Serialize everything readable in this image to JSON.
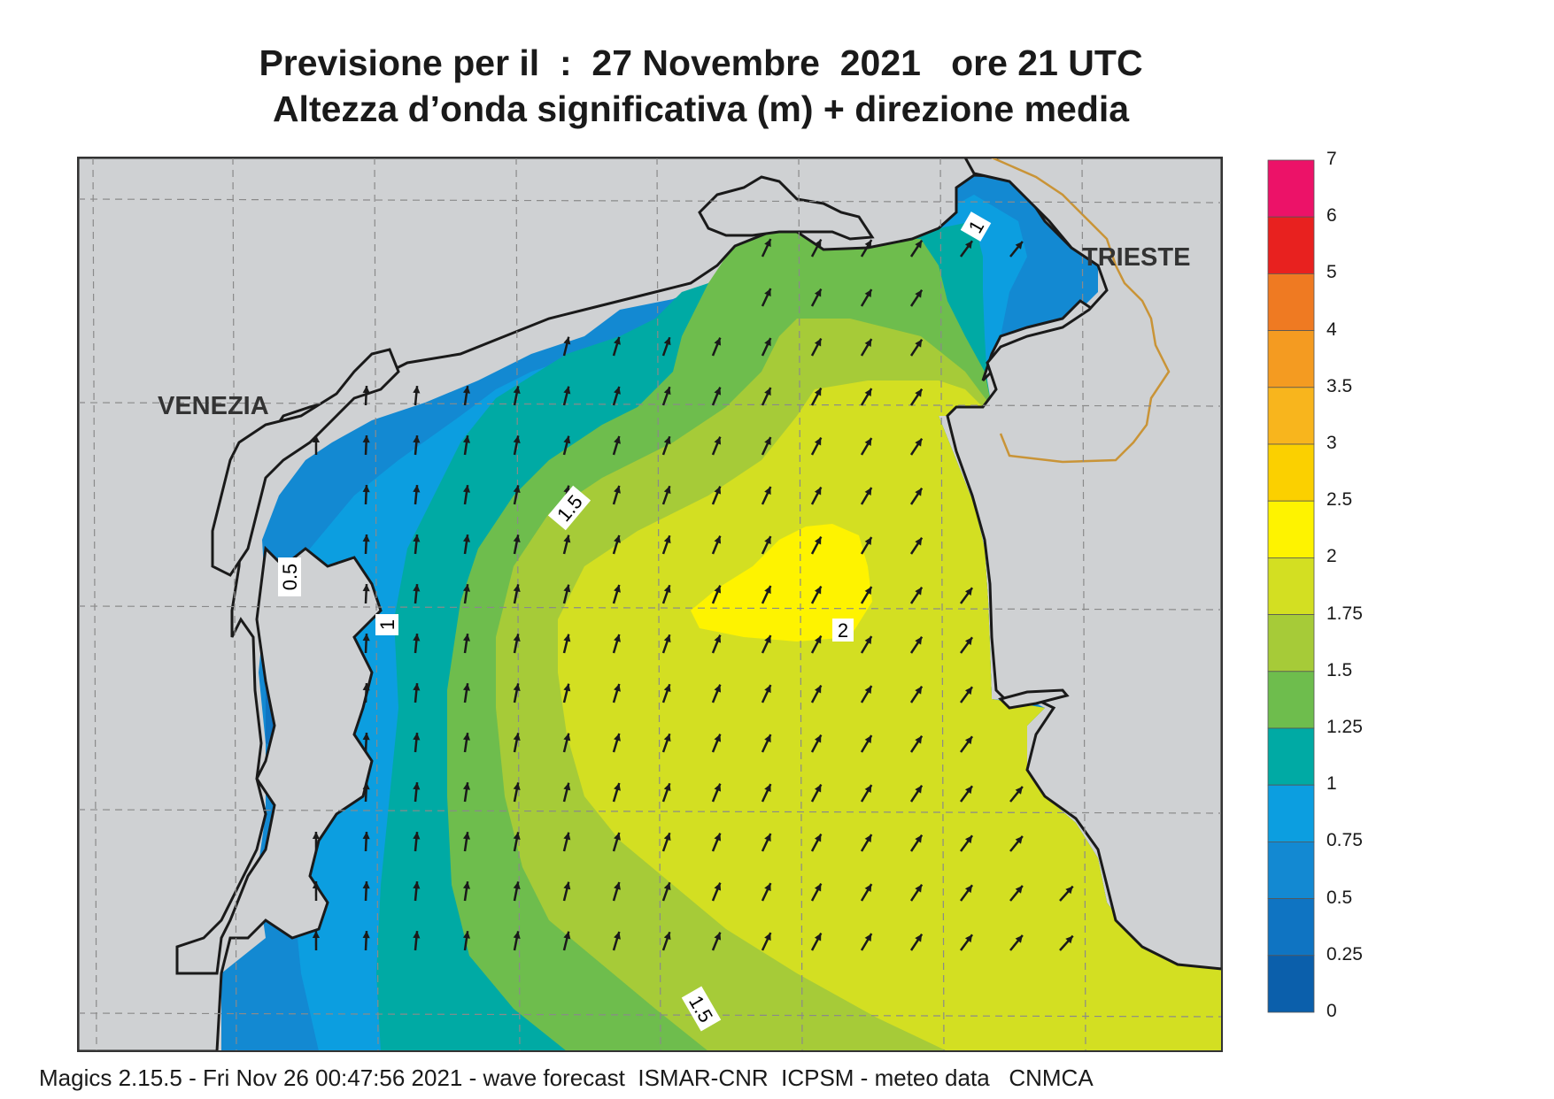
{
  "title": {
    "line1": "Previsione per il  :  27 Novembre  2021   ore 21 UTC",
    "line2": "Altezza d’onda significativa (m) + direzione media"
  },
  "places": {
    "venezia": "VENEZIA",
    "trieste": "TRIESTE"
  },
  "contour_labels": [
    "0.5",
    "1",
    "1.5",
    "2",
    "1.5",
    "1"
  ],
  "legend": {
    "values": [
      "7",
      "6",
      "5",
      "4",
      "3.5",
      "3",
      "2.5",
      "2",
      "1.75",
      "1.5",
      "1.25",
      "1",
      "0.75",
      "0.5",
      "0.25",
      "0"
    ],
    "colors": [
      "#ec1268",
      "#e8211f",
      "#ef7a22",
      "#f49b21",
      "#f8b51d",
      "#fbd000",
      "#fef300",
      "#d3df22",
      "#a6cb38",
      "#6ebd4d",
      "#00aaa4",
      "#0c9ee0",
      "#1389d2",
      "#0f74c2",
      "#0b5fab"
    ]
  },
  "colors": {
    "land": "#cfd1d3",
    "frame": "#333333",
    "coast": "#1a1a1a",
    "border": "#c99437",
    "arrow": "#1a1a1a"
  },
  "arrows": {
    "description_icon": "wave-direction-arrow-icon"
  },
  "footer": "Magics 2.15.5 - Fri Nov 26 00:47:56 2021 - wave forecast  ISMAR-CNR  ICPSM - meteo data   CNMCA"
}
